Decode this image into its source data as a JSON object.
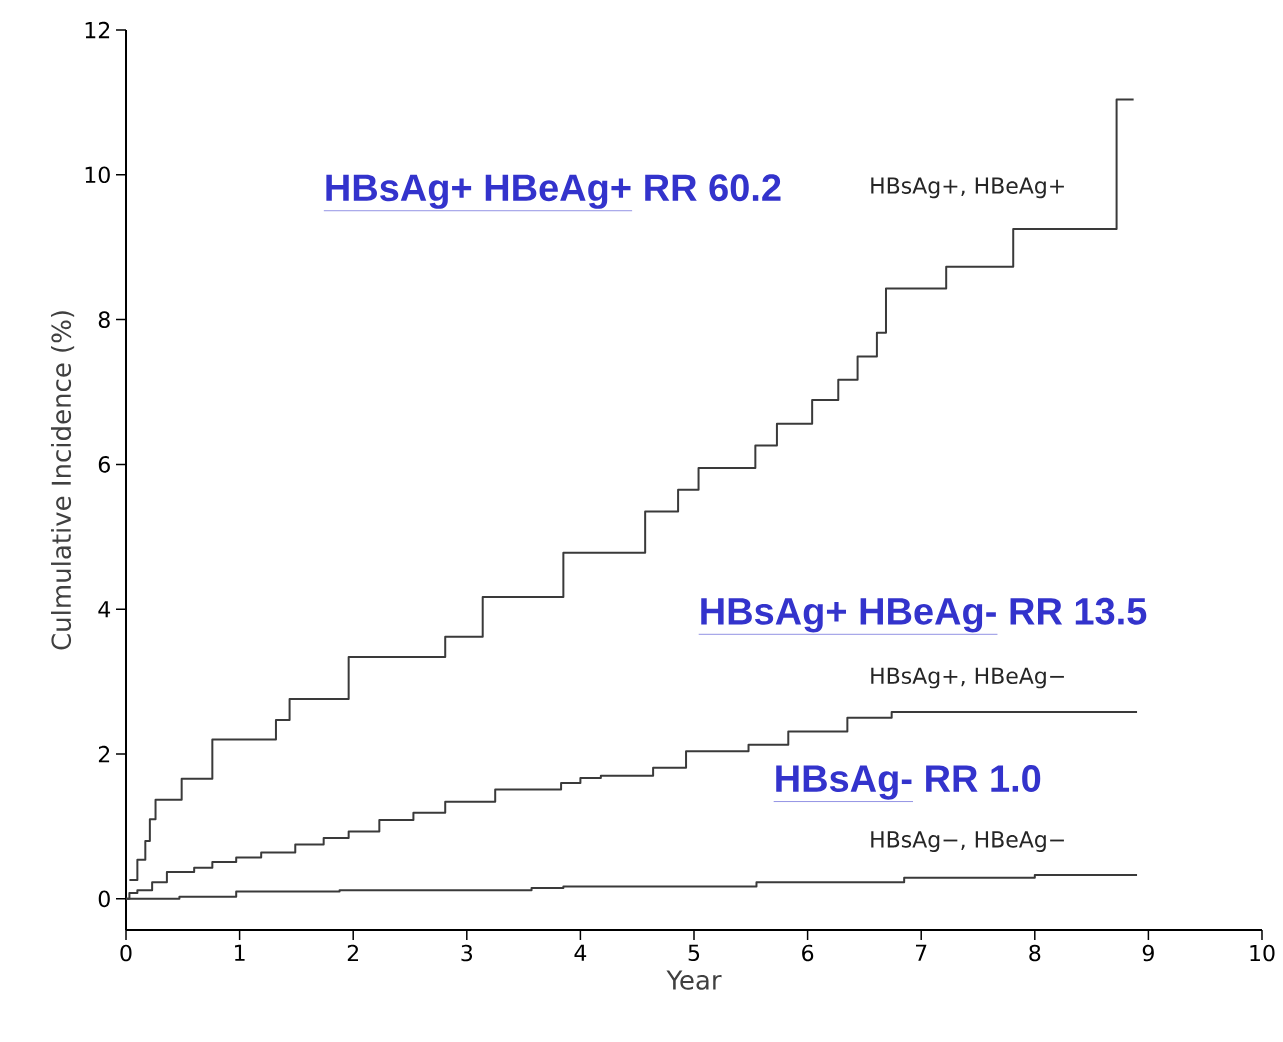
{
  "chart_data": {
    "type": "step",
    "xlabel": "Year",
    "ylabel": "Culmulative Incidence (%)",
    "xlim": [
      0,
      10
    ],
    "ylim": [
      -0.43,
      12
    ],
    "xticks": [
      0,
      1,
      2,
      3,
      4,
      5,
      6,
      7,
      8,
      9,
      10
    ],
    "yticks": [
      0,
      2,
      4,
      6,
      8,
      10,
      12
    ],
    "series": [
      {
        "name": "HBsAg+, HBeAg+",
        "color": "#3a3a3a",
        "x": [
          0.03,
          0.1,
          0.17,
          0.21,
          0.26,
          0.49,
          0.76,
          1.32,
          1.44,
          1.96,
          2.81,
          3.14,
          3.85,
          4.57,
          4.86,
          5.04,
          5.54,
          5.73,
          6.04,
          6.27,
          6.44,
          6.61,
          6.69,
          7.22,
          7.81,
          8.72,
          8.87
        ],
        "values": [
          0.26,
          0.54,
          0.8,
          1.1,
          1.37,
          1.66,
          2.2,
          2.47,
          2.76,
          3.34,
          3.62,
          4.17,
          4.78,
          5.35,
          5.65,
          5.95,
          6.26,
          6.56,
          6.89,
          7.17,
          7.49,
          7.82,
          8.43,
          8.73,
          9.25,
          11.04,
          11.04
        ]
      },
      {
        "name": "HBsAg+, HBeAg−",
        "color": "#3a3a3a",
        "x": [
          0,
          0.03,
          0.1,
          0.23,
          0.36,
          0.6,
          0.76,
          0.97,
          1.19,
          1.49,
          1.74,
          1.96,
          2.23,
          2.53,
          2.81,
          3.25,
          3.83,
          4.0,
          4.18,
          4.64,
          4.93,
          5.48,
          5.83,
          6.35,
          6.74,
          8.9
        ],
        "values": [
          0,
          0.08,
          0.12,
          0.23,
          0.37,
          0.43,
          0.51,
          0.57,
          0.64,
          0.75,
          0.84,
          0.93,
          1.09,
          1.19,
          1.34,
          1.51,
          1.6,
          1.67,
          1.7,
          1.81,
          2.04,
          2.13,
          2.31,
          2.5,
          2.58,
          2.58
        ]
      },
      {
        "name": "HBsAg−, HBeAg−",
        "color": "#3a3a3a",
        "x": [
          0,
          0.47,
          0.97,
          1.88,
          3.57,
          3.85,
          5.55,
          6.85,
          8.0,
          8.9
        ],
        "values": [
          0,
          0.03,
          0.1,
          0.12,
          0.15,
          0.17,
          0.23,
          0.29,
          0.33,
          0.33
        ]
      }
    ],
    "annotations": [
      "HBsAg+ HBeAg+",
      "RR 60.2",
      "HBsAg+ HBeAg-",
      "RR 13.5",
      "HBsAg-",
      "RR 1.0"
    ]
  }
}
